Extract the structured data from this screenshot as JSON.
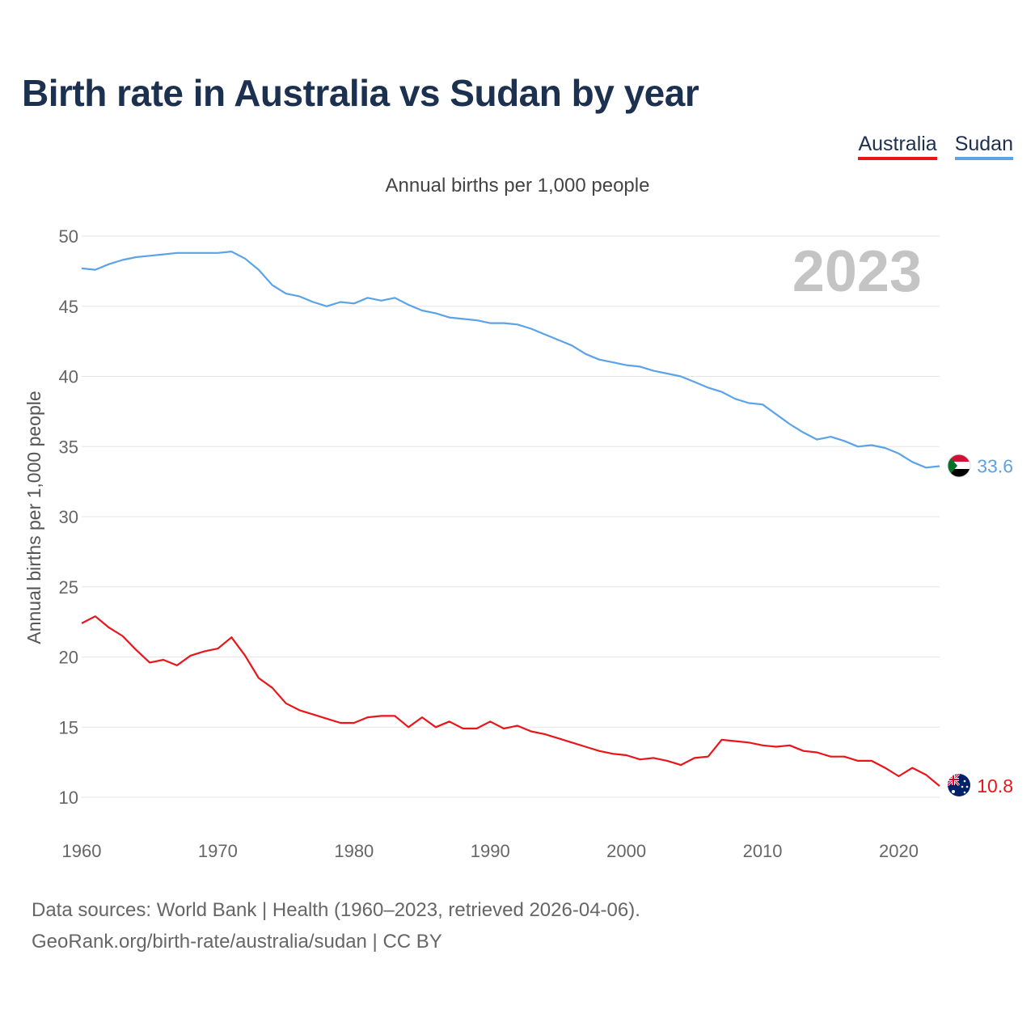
{
  "title": "Birth rate in Australia vs Sudan by year",
  "subtitle": "Annual births per 1,000 people",
  "year_watermark": "2023",
  "footer": {
    "line1": "Data sources: World Bank | Health (1960–2023, retrieved 2026-04-06).",
    "line2": "GeoRank.org/birth-rate/australia/sudan | CC BY"
  },
  "chart_data": {
    "type": "line",
    "title": "Birth rate in Australia vs Sudan by year",
    "xlabel": "",
    "ylabel": "Annual births per 1,000 people",
    "xlim": [
      1960,
      2023
    ],
    "ylim": [
      10,
      50
    ],
    "xticks": [
      1960,
      1970,
      1980,
      1990,
      2000,
      2010,
      2020
    ],
    "yticks": [
      10,
      15,
      20,
      25,
      30,
      35,
      40,
      45,
      50
    ],
    "grid": true,
    "legend": "top-right",
    "x": [
      1960,
      1961,
      1962,
      1963,
      1964,
      1965,
      1966,
      1967,
      1968,
      1969,
      1970,
      1971,
      1972,
      1973,
      1974,
      1975,
      1976,
      1977,
      1978,
      1979,
      1980,
      1981,
      1982,
      1983,
      1984,
      1985,
      1986,
      1987,
      1988,
      1989,
      1990,
      1991,
      1992,
      1993,
      1994,
      1995,
      1996,
      1997,
      1998,
      1999,
      2000,
      2001,
      2002,
      2003,
      2004,
      2005,
      2006,
      2007,
      2008,
      2009,
      2010,
      2011,
      2012,
      2013,
      2014,
      2015,
      2016,
      2017,
      2018,
      2019,
      2020,
      2021,
      2022,
      2023
    ],
    "series": [
      {
        "name": "Australia",
        "color": "#e8161b",
        "end_label": "10.8",
        "values": [
          22.4,
          22.9,
          22.1,
          21.5,
          20.5,
          19.6,
          19.8,
          19.4,
          20.1,
          20.4,
          20.6,
          21.4,
          20.1,
          18.5,
          17.8,
          16.7,
          16.2,
          15.9,
          15.6,
          15.3,
          15.3,
          15.7,
          15.8,
          15.8,
          15.0,
          15.7,
          15.0,
          15.4,
          14.9,
          14.9,
          15.4,
          14.9,
          15.1,
          14.7,
          14.5,
          14.2,
          13.9,
          13.6,
          13.3,
          13.1,
          13.0,
          12.7,
          12.8,
          12.6,
          12.3,
          12.8,
          12.9,
          14.1,
          14.0,
          13.9,
          13.7,
          13.6,
          13.7,
          13.3,
          13.2,
          12.9,
          12.9,
          12.6,
          12.6,
          12.1,
          11.5,
          12.1,
          11.6,
          10.8
        ]
      },
      {
        "name": "Sudan",
        "color": "#5ba3e6",
        "end_label": "33.6",
        "values": [
          47.7,
          47.6,
          48.0,
          48.3,
          48.5,
          48.6,
          48.7,
          48.8,
          48.8,
          48.8,
          48.8,
          48.9,
          48.4,
          47.6,
          46.5,
          45.9,
          45.7,
          45.3,
          45.0,
          45.3,
          45.2,
          45.6,
          45.4,
          45.6,
          45.1,
          44.7,
          44.5,
          44.2,
          44.1,
          44.0,
          43.8,
          43.8,
          43.7,
          43.4,
          43.0,
          42.6,
          42.2,
          41.6,
          41.2,
          41.0,
          40.8,
          40.7,
          40.4,
          40.2,
          40.0,
          39.6,
          39.2,
          38.9,
          38.4,
          38.1,
          38.0,
          37.3,
          36.6,
          36.0,
          35.5,
          35.7,
          35.4,
          35.0,
          35.1,
          34.9,
          34.5,
          33.9,
          33.5,
          33.6
        ]
      }
    ]
  }
}
